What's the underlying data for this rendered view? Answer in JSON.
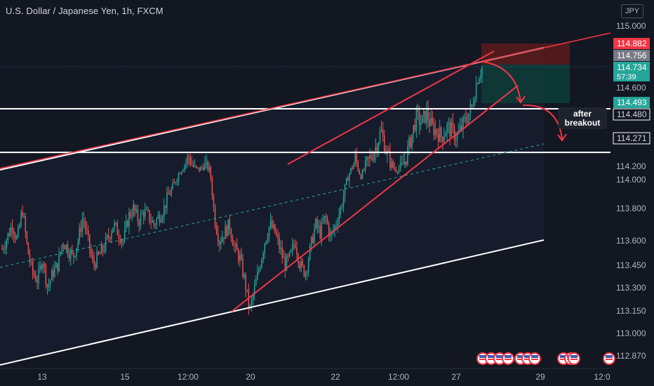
{
  "header": {
    "title": "U.S. Dollar / Japanese Yen, 1h, FXCM",
    "currency": "JPY"
  },
  "annotation": {
    "line1": "after",
    "line2": "breakout"
  },
  "colors": {
    "background": "#131722",
    "up": "#26a69a",
    "down": "#ef5350",
    "trendline": "#f23645",
    "level": "#ffffff",
    "midline": "#26a69a",
    "target_zone": "#0d3b36",
    "stop_zone": "#5c1b1b"
  },
  "chart_data": {
    "type": "candlestick",
    "symbol": "USDJPY",
    "timeframe": "1h",
    "ylim": [
      112.8,
      115.1
    ],
    "y_ticks": [
      115.0,
      114.6,
      114.2,
      114.0,
      113.8,
      113.6,
      113.45,
      113.3,
      113.15,
      113.0,
      112.87
    ],
    "x_ticks": [
      "13",
      "15",
      "12:00",
      "20",
      "22",
      "12:00",
      "27",
      "29",
      "12:0"
    ],
    "price_labels": [
      {
        "value": "114.882",
        "kind": "stop"
      },
      {
        "value": "114.756",
        "kind": "entry"
      },
      {
        "value": "114.734",
        "sub": "57:39",
        "kind": "current"
      },
      {
        "value": "114.493",
        "kind": "target1"
      },
      {
        "value": "114.480",
        "kind": "plain"
      },
      {
        "value": "114.271",
        "kind": "target2"
      }
    ],
    "levels": [
      114.493,
      114.271
    ],
    "close_path": [
      113.55,
      113.62,
      113.7,
      113.6,
      113.8,
      113.55,
      113.4,
      113.35,
      113.5,
      113.3,
      113.4,
      113.45,
      113.6,
      113.55,
      113.5,
      113.6,
      113.75,
      113.6,
      113.45,
      113.5,
      113.55,
      113.62,
      113.7,
      113.65,
      113.6,
      113.75,
      113.8,
      113.72,
      113.78,
      113.75,
      113.7,
      113.75,
      113.8,
      113.9,
      113.95,
      114.1,
      114.2,
      114.25,
      114.18,
      114.15,
      114.2,
      114.15,
      113.75,
      113.6,
      113.65,
      113.7,
      113.55,
      113.5,
      113.35,
      113.15,
      113.3,
      113.45,
      113.6,
      113.7,
      113.65,
      113.55,
      113.45,
      113.5,
      113.6,
      113.45,
      113.4,
      113.55,
      113.7,
      113.65,
      113.75,
      113.62,
      113.7,
      113.8,
      113.95,
      114.15,
      114.25,
      114.05,
      114.2,
      114.25,
      114.3,
      114.38,
      114.28,
      114.2,
      114.15,
      114.18,
      114.25,
      114.35,
      114.45,
      114.42,
      114.47,
      114.4,
      114.38,
      114.35,
      114.4,
      114.38,
      114.35,
      114.4,
      114.45,
      114.5,
      114.65,
      114.73
    ],
    "channels": [
      {
        "name": "",
        "from": [
          0,
          114.17
        ],
        "to": [
          775,
          114.74
        ]
      },
      {
        "name": "",
        "from": [
          0,
          112.87
        ],
        "to": [
          775,
          113.6
        ]
      }
    ]
  }
}
